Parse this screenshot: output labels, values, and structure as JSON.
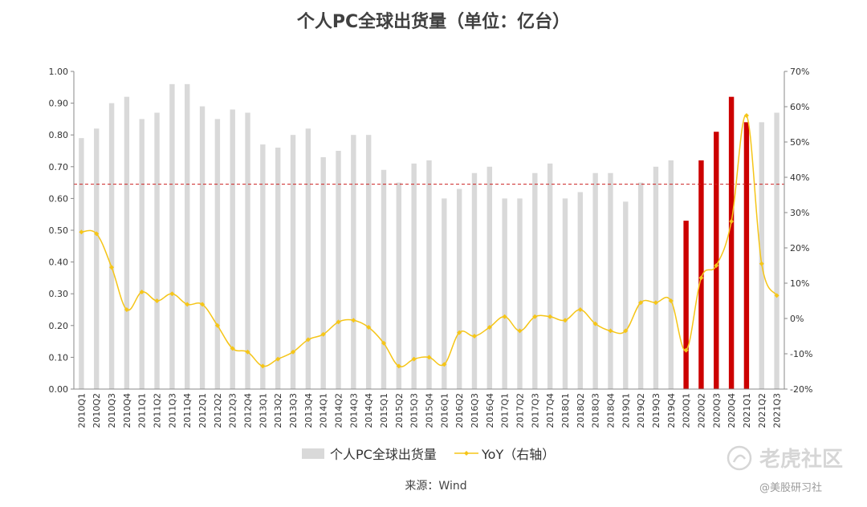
{
  "chart_data": {
    "type": "bar",
    "title": "个人PC全球出货量（单位：亿台）",
    "categories": [
      "2010Q1",
      "2010Q2",
      "2010Q3",
      "2010Q4",
      "2011Q1",
      "2011Q2",
      "2011Q3",
      "2011Q4",
      "2012Q1",
      "2012Q2",
      "2012Q3",
      "2012Q4",
      "2013Q1",
      "2013Q2",
      "2013Q3",
      "2013Q4",
      "2014Q1",
      "2014Q2",
      "2014Q3",
      "2014Q4",
      "2015Q1",
      "2015Q2",
      "2015Q3",
      "2015Q4",
      "2016Q1",
      "2016Q2",
      "2016Q3",
      "2016Q4",
      "2017Q1",
      "2017Q2",
      "2017Q3",
      "2017Q4",
      "2018Q1",
      "2018Q2",
      "2018Q3",
      "2018Q4",
      "2019Q1",
      "2019Q2",
      "2019Q3",
      "2019Q4",
      "2020Q1",
      "2020Q2",
      "2020Q3",
      "2020Q4",
      "2021Q1",
      "2021Q2",
      "2021Q3"
    ],
    "series": [
      {
        "name": "个人PC全球出货量",
        "axis": "left",
        "color": "#d9d9d9",
        "highlight_color": "#cc0000",
        "highlight_categories": [
          "2020Q1",
          "2020Q2",
          "2020Q3",
          "2020Q4",
          "2021Q1"
        ],
        "values": [
          0.79,
          0.82,
          0.9,
          0.92,
          0.85,
          0.87,
          0.96,
          0.96,
          0.89,
          0.85,
          0.88,
          0.87,
          0.77,
          0.76,
          0.8,
          0.82,
          0.73,
          0.75,
          0.8,
          0.8,
          0.69,
          0.65,
          0.71,
          0.72,
          0.6,
          0.63,
          0.68,
          0.7,
          0.6,
          0.6,
          0.68,
          0.71,
          0.6,
          0.62,
          0.68,
          0.68,
          0.59,
          0.65,
          0.7,
          0.72,
          0.53,
          0.72,
          0.81,
          0.92,
          0.84,
          0.84,
          0.87
        ]
      },
      {
        "name": "YoY（右轴）",
        "axis": "right",
        "color": "#f5c518",
        "values": [
          24.5,
          24.0,
          14.5,
          2.5,
          7.5,
          5.0,
          7.0,
          4.0,
          4.0,
          -2.0,
          -8.5,
          -9.5,
          -13.5,
          -11.5,
          -9.5,
          -6.0,
          -4.5,
          -1.0,
          -0.5,
          -2.5,
          -7.0,
          -13.5,
          -11.5,
          -11.0,
          -13.0,
          -4.0,
          -5.0,
          -2.5,
          0.5,
          -3.5,
          0.5,
          0.5,
          -0.5,
          2.5,
          -1.5,
          -3.5,
          -3.5,
          4.5,
          4.5,
          5.0,
          -9.0,
          11.5,
          15.0,
          27.5,
          57.5,
          15.5,
          6.5
        ]
      }
    ],
    "reference_line": {
      "axis": "left",
      "value": 0.645,
      "color": "#cc2222"
    },
    "ylim": [
      0,
      1.0
    ],
    "yticks": [
      "1.00",
      "0.90",
      "0.80",
      "0.70",
      "0.60",
      "0.50",
      "0.40",
      "0.30",
      "0.20",
      "0.10",
      "0.00"
    ],
    "y2lim": [
      -20,
      70
    ],
    "y2ticks": [
      "70%",
      "60%",
      "50%",
      "40%",
      "30%",
      "20%",
      "10%",
      "0%",
      "-10%",
      "-20%"
    ],
    "grid": false,
    "legend_position": "bottom",
    "source": "来源：Wind"
  },
  "watermark": {
    "brand": "老虎社区",
    "handle": "@美股研习社"
  }
}
